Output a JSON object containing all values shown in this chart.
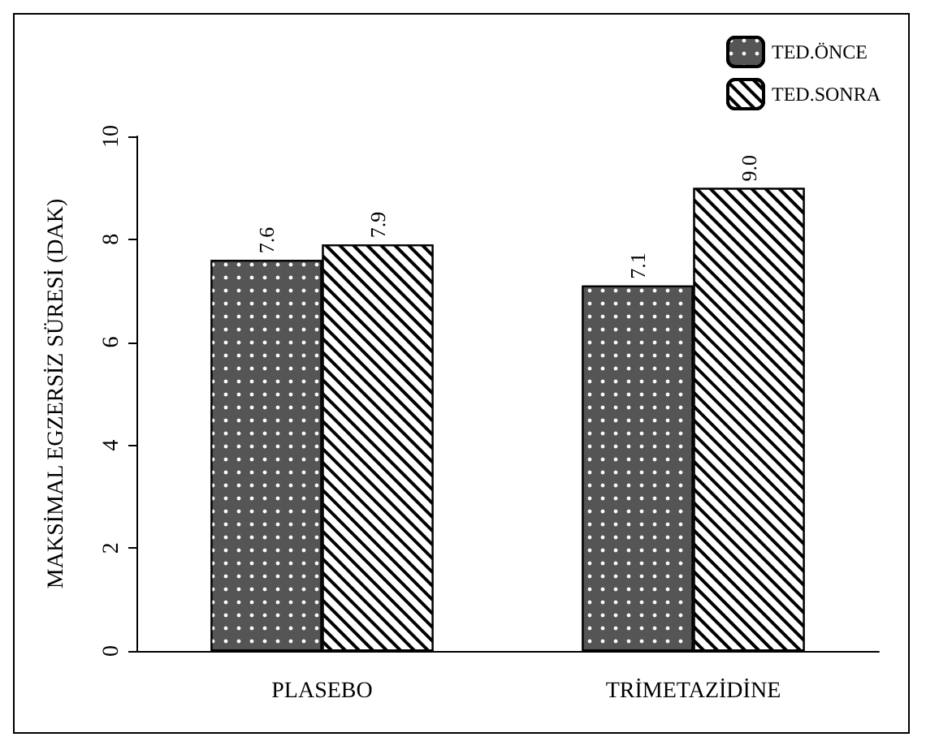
{
  "chart_data": {
    "type": "bar",
    "ylabel": "MAKSİMAL EGZERSİZ SÜRESİ (DAK)",
    "categories": [
      "PLASEBO",
      "TRİMETAZİDİNE"
    ],
    "series": [
      {
        "name": "TED.ÖNCE",
        "color": "#555555",
        "values": [
          7.6,
          7.1
        ],
        "value_labels": [
          "7.6",
          "7.1"
        ]
      },
      {
        "name": "TED.SONRA",
        "color": "#ffffff",
        "values": [
          7.9,
          9.0
        ],
        "value_labels": [
          "7.9",
          "9.0"
        ]
      }
    ],
    "ylim": [
      0,
      10
    ],
    "yticks": [
      0,
      2,
      4,
      6,
      8,
      10
    ],
    "grid": false,
    "legend": "top right"
  }
}
